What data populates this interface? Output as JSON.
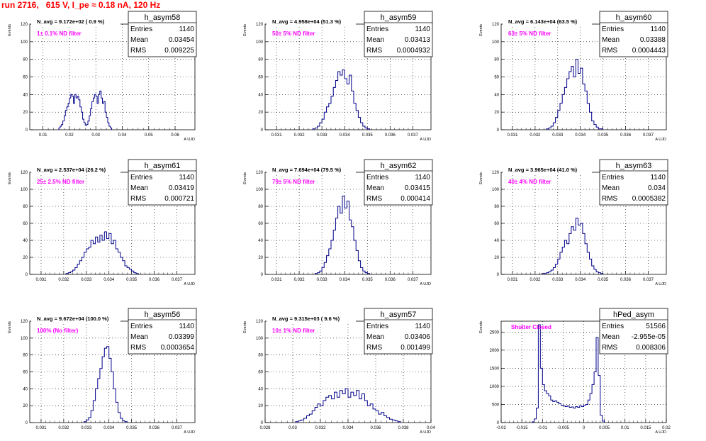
{
  "header": {
    "title": "run 2716,   615 V, I_pe ≈ 0.18 nA, 120 Hz"
  },
  "colors": {
    "histogram": "#00008b",
    "annotation": "#ff00ff",
    "title": "#ff0000",
    "grid": "#000000"
  },
  "chart_data": [
    {
      "type": "histogram",
      "name": "h_asym58",
      "stats": {
        "entries_label": "Entries",
        "entries": "1140",
        "mean_label": "Mean",
        "mean": "0.03454",
        "rms_label": "RMS",
        "rms": "0.009225"
      },
      "navg": "N_avg = 9.172e+02 ( 0.9 %)",
      "filter": "1± 0.1% ND filter",
      "ylabel": "Events",
      "xlabel": "A UJD",
      "xlim": [
        0.005,
        0.0675
      ],
      "ylim": [
        0,
        120
      ],
      "xticks": [
        "0.01",
        "0.02",
        "0.03",
        "0.04",
        "0.05",
        "0.06"
      ],
      "xtick_values": [
        0.01,
        0.02,
        0.03,
        0.04,
        0.05,
        0.06
      ],
      "yticks": [
        "0",
        "20",
        "40",
        "60",
        "80",
        "100",
        "120"
      ],
      "ytick_values": [
        0,
        20,
        40,
        60,
        80,
        100,
        120
      ],
      "bin_start": 0.016,
      "bin_width": 0.0005,
      "counts": [
        2,
        4,
        6,
        10,
        16,
        22,
        26,
        30,
        36,
        40,
        38,
        30,
        40,
        36,
        38,
        34,
        26,
        20,
        12,
        8,
        5,
        6,
        10,
        16,
        24,
        32,
        36,
        40,
        38,
        30,
        40,
        44,
        36,
        30,
        32,
        20,
        14,
        8,
        4,
        2
      ]
    },
    {
      "type": "histogram",
      "name": "h_asym59",
      "stats": {
        "entries_label": "Entries",
        "entries": "1140",
        "mean_label": "Mean",
        "mean": "0.03413",
        "rms_label": "RMS",
        "rms": "0.0004932"
      },
      "navg": "N_avg = 4.958e+04 (51.3 %)",
      "filter": "50± 5% ND filter",
      "ylabel": "Events",
      "xlabel": "A UJD",
      "xlim": [
        0.0305,
        0.0378
      ],
      "ylim": [
        0,
        120
      ],
      "xticks": [
        "0.031",
        "0.032",
        "0.033",
        "0.034",
        "0.035",
        "0.036",
        "0.037"
      ],
      "xtick_values": [
        0.031,
        0.032,
        0.033,
        0.034,
        0.035,
        0.036,
        0.037
      ],
      "yticks": [
        "0",
        "20",
        "40",
        "60",
        "80",
        "100",
        "120"
      ],
      "ytick_values": [
        0,
        20,
        40,
        60,
        80,
        100,
        120
      ],
      "bin_start": 0.0326,
      "bin_width": 0.0001,
      "counts": [
        1,
        2,
        4,
        8,
        12,
        20,
        26,
        30,
        38,
        48,
        56,
        66,
        62,
        68,
        58,
        52,
        62,
        44,
        30,
        22,
        14,
        8,
        4,
        2,
        1
      ]
    },
    {
      "type": "histogram",
      "name": "h_asym60",
      "stats": {
        "entries_label": "Entries",
        "entries": "1140",
        "mean_label": "Mean",
        "mean": "0.03388",
        "rms_label": "RMS",
        "rms": "0.0004443"
      },
      "navg": "N_avg = 6.143e+04 (63.5 %)",
      "filter": "63± 5% ND filter",
      "ylabel": "Events",
      "xlabel": "A UJD",
      "xlim": [
        0.0305,
        0.0378
      ],
      "ylim": [
        0,
        120
      ],
      "xticks": [
        "0.031",
        "0.032",
        "0.033",
        "0.034",
        "0.035",
        "0.036",
        "0.037"
      ],
      "xtick_values": [
        0.031,
        0.032,
        0.033,
        0.034,
        0.035,
        0.036,
        0.037
      ],
      "yticks": [
        "0",
        "20",
        "40",
        "60",
        "80",
        "100",
        "120"
      ],
      "ytick_values": [
        0,
        20,
        40,
        60,
        80,
        100,
        120
      ],
      "bin_start": 0.0325,
      "bin_width": 0.0001,
      "counts": [
        1,
        2,
        4,
        8,
        14,
        22,
        30,
        40,
        48,
        58,
        66,
        72,
        60,
        80,
        64,
        70,
        52,
        44,
        30,
        20,
        10,
        6,
        3,
        1,
        1
      ]
    },
    {
      "type": "histogram",
      "name": "h_asym61",
      "stats": {
        "entries_label": "Entries",
        "entries": "1140",
        "mean_label": "Mean",
        "mean": "0.03419",
        "rms_label": "RMS",
        "rms": "0.000721"
      },
      "navg": "N_avg = 2.537e+04 (26.2 %)",
      "filter": "25± 2.5% ND filter",
      "ylabel": "Events",
      "xlabel": "A UJD",
      "xlim": [
        0.0305,
        0.0378
      ],
      "ylim": [
        0,
        120
      ],
      "xticks": [
        "0.031",
        "0.032",
        "0.033",
        "0.034",
        "0.035",
        "0.036",
        "0.037"
      ],
      "xtick_values": [
        0.031,
        0.032,
        0.033,
        0.034,
        0.035,
        0.036,
        0.037
      ],
      "yticks": [
        "0",
        "20",
        "40",
        "60",
        "80",
        "100",
        "120"
      ],
      "ytick_values": [
        0,
        20,
        40,
        60,
        80,
        100,
        120
      ],
      "bin_start": 0.0321,
      "bin_width": 0.0001,
      "counts": [
        1,
        2,
        3,
        5,
        8,
        12,
        16,
        20,
        26,
        30,
        32,
        40,
        36,
        44,
        38,
        46,
        40,
        50,
        42,
        48,
        36,
        40,
        30,
        26,
        20,
        16,
        10,
        8,
        6,
        4,
        2,
        1
      ]
    },
    {
      "type": "histogram",
      "name": "h_asym62",
      "stats": {
        "entries_label": "Entries",
        "entries": "1140",
        "mean_label": "Mean",
        "mean": "0.03415",
        "rms_label": "RMS",
        "rms": "0.000414"
      },
      "navg": "N_avg = 7.694e+04 (79.5 %)",
      "filter": "79± 5% ND filter",
      "ylabel": "Events",
      "xlabel": "A UJD",
      "xlim": [
        0.0305,
        0.0378
      ],
      "ylim": [
        0,
        120
      ],
      "xticks": [
        "0.031",
        "0.032",
        "0.033",
        "0.034",
        "0.035",
        "0.036",
        "0.037"
      ],
      "xtick_values": [
        0.031,
        0.032,
        0.033,
        0.034,
        0.035,
        0.036,
        0.037
      ],
      "yticks": [
        "0",
        "20",
        "40",
        "60",
        "80",
        "100",
        "120"
      ],
      "ytick_values": [
        0,
        20,
        40,
        60,
        80,
        100,
        120
      ],
      "bin_start": 0.0327,
      "bin_width": 0.0001,
      "counts": [
        1,
        2,
        4,
        8,
        14,
        22,
        30,
        40,
        52,
        66,
        80,
        72,
        92,
        78,
        86,
        64,
        56,
        40,
        28,
        16,
        8,
        4,
        2,
        1
      ]
    },
    {
      "type": "histogram",
      "name": "h_asym63",
      "stats": {
        "entries_label": "Entries",
        "entries": "1140",
        "mean_label": "Mean",
        "mean": "0.034",
        "rms_label": "RMS",
        "rms": "0.0005382"
      },
      "navg": "N_avg = 3.965e+04 (41.0 %)",
      "filter": "40± 4% ND filter",
      "ylabel": "Events",
      "xlabel": "A UJD",
      "xlim": [
        0.0305,
        0.0378
      ],
      "ylim": [
        0,
        120
      ],
      "xticks": [
        "0.031",
        "0.032",
        "0.033",
        "0.034",
        "0.035",
        "0.036",
        "0.037"
      ],
      "xtick_values": [
        0.031,
        0.032,
        0.033,
        0.034,
        0.035,
        0.036,
        0.037
      ],
      "yticks": [
        "0",
        "20",
        "40",
        "60",
        "80",
        "100",
        "120"
      ],
      "ytick_values": [
        0,
        20,
        40,
        60,
        80,
        100,
        120
      ],
      "bin_start": 0.0323,
      "bin_width": 0.0001,
      "counts": [
        1,
        1,
        2,
        3,
        5,
        8,
        12,
        18,
        26,
        32,
        40,
        36,
        48,
        56,
        52,
        66,
        58,
        60,
        48,
        36,
        26,
        18,
        10,
        6,
        3,
        2,
        1
      ]
    },
    {
      "type": "histogram",
      "name": "h_asym56",
      "stats": {
        "entries_label": "Entries",
        "entries": "1140",
        "mean_label": "Mean",
        "mean": "0.03399",
        "rms_label": "RMS",
        "rms": "0.0003654"
      },
      "navg": "N_avg = 9.672e+04 (100.0 %)",
      "filter": "100% (No filter)",
      "ylabel": "Events",
      "xlabel": "A UJD",
      "xlim": [
        0.0305,
        0.0378
      ],
      "ylim": [
        0,
        120
      ],
      "xticks": [
        "0.031",
        "0.032",
        "0.033",
        "0.034",
        "0.035",
        "0.036",
        "0.037"
      ],
      "xtick_values": [
        0.031,
        0.032,
        0.033,
        0.034,
        0.035,
        0.036,
        0.037
      ],
      "yticks": [
        "0",
        "20",
        "40",
        "60",
        "80",
        "100",
        "120"
      ],
      "ytick_values": [
        0,
        20,
        40,
        60,
        80,
        100,
        120
      ],
      "bin_start": 0.0329,
      "bin_width": 0.0001,
      "counts": [
        1,
        3,
        6,
        14,
        26,
        40,
        52,
        64,
        78,
        88,
        90,
        76,
        60,
        40,
        24,
        12,
        5,
        2,
        1
      ]
    },
    {
      "type": "histogram",
      "name": "h_asym57",
      "stats": {
        "entries_label": "Entries",
        "entries": "1140",
        "mean_label": "Mean",
        "mean": "0.03406",
        "rms_label": "RMS",
        "rms": "0.001499"
      },
      "navg": "N_avg = 9.315e+03 ( 9.6 %)",
      "filter": "10± 1% ND filter",
      "ylabel": "Events",
      "xlabel": "A UJD",
      "xlim": [
        0.028,
        0.04
      ],
      "ylim": [
        0,
        120
      ],
      "xticks": [
        "0.028",
        "0.03",
        "0.032",
        "0.034",
        "0.036",
        "0.038",
        "0.04"
      ],
      "xtick_values": [
        0.028,
        0.03,
        0.032,
        0.034,
        0.036,
        0.038,
        0.04
      ],
      "yticks": [
        "0",
        "20",
        "40",
        "60",
        "80",
        "100",
        "120"
      ],
      "ytick_values": [
        0,
        20,
        40,
        60,
        80,
        100,
        120
      ],
      "bin_start": 0.0302,
      "bin_width": 0.0002,
      "counts": [
        1,
        2,
        3,
        5,
        8,
        10,
        14,
        18,
        22,
        20,
        26,
        30,
        32,
        28,
        36,
        30,
        38,
        34,
        40,
        30,
        36,
        32,
        38,
        28,
        34,
        26,
        20,
        22,
        16,
        14,
        10,
        12,
        8,
        6,
        4,
        3,
        2,
        1
      ]
    },
    {
      "type": "histogram",
      "name": "hPed_asym",
      "stats": {
        "entries_label": "Entries",
        "entries": "51566",
        "mean_label": "Mean",
        "mean": "-2.955e-05",
        "rms_label": "RMS",
        "rms": "0.008306"
      },
      "navg": "",
      "filter": "Shutter Closed",
      "ylabel": "Events",
      "xlabel": "A UJD",
      "xlim": [
        -0.02,
        0.02
      ],
      "ylim": [
        0,
        2800
      ],
      "xticks": [
        "-0.02",
        "-0.015",
        "-0.01",
        "-0.005",
        "0",
        "0.005",
        "0.01",
        "0.015",
        "0.02"
      ],
      "xtick_values": [
        -0.02,
        -0.015,
        -0.01,
        -0.005,
        0,
        0.005,
        0.01,
        0.015,
        0.02
      ],
      "yticks": [
        "0",
        "500",
        "1000",
        "1500",
        "2000",
        "2500"
      ],
      "ytick_values": [
        0,
        500,
        1000,
        1500,
        2000,
        2500
      ],
      "bin_start": -0.0125,
      "bin_width": 0.0005,
      "counts": [
        20,
        100,
        400,
        2700,
        1500,
        1050,
        880,
        800,
        740,
        620,
        580,
        600,
        560,
        520,
        480,
        460,
        440,
        460,
        420,
        430,
        400,
        440,
        420,
        460,
        440,
        480,
        500,
        620,
        800,
        1050,
        1400,
        2350,
        1300,
        200,
        40
      ]
    }
  ]
}
